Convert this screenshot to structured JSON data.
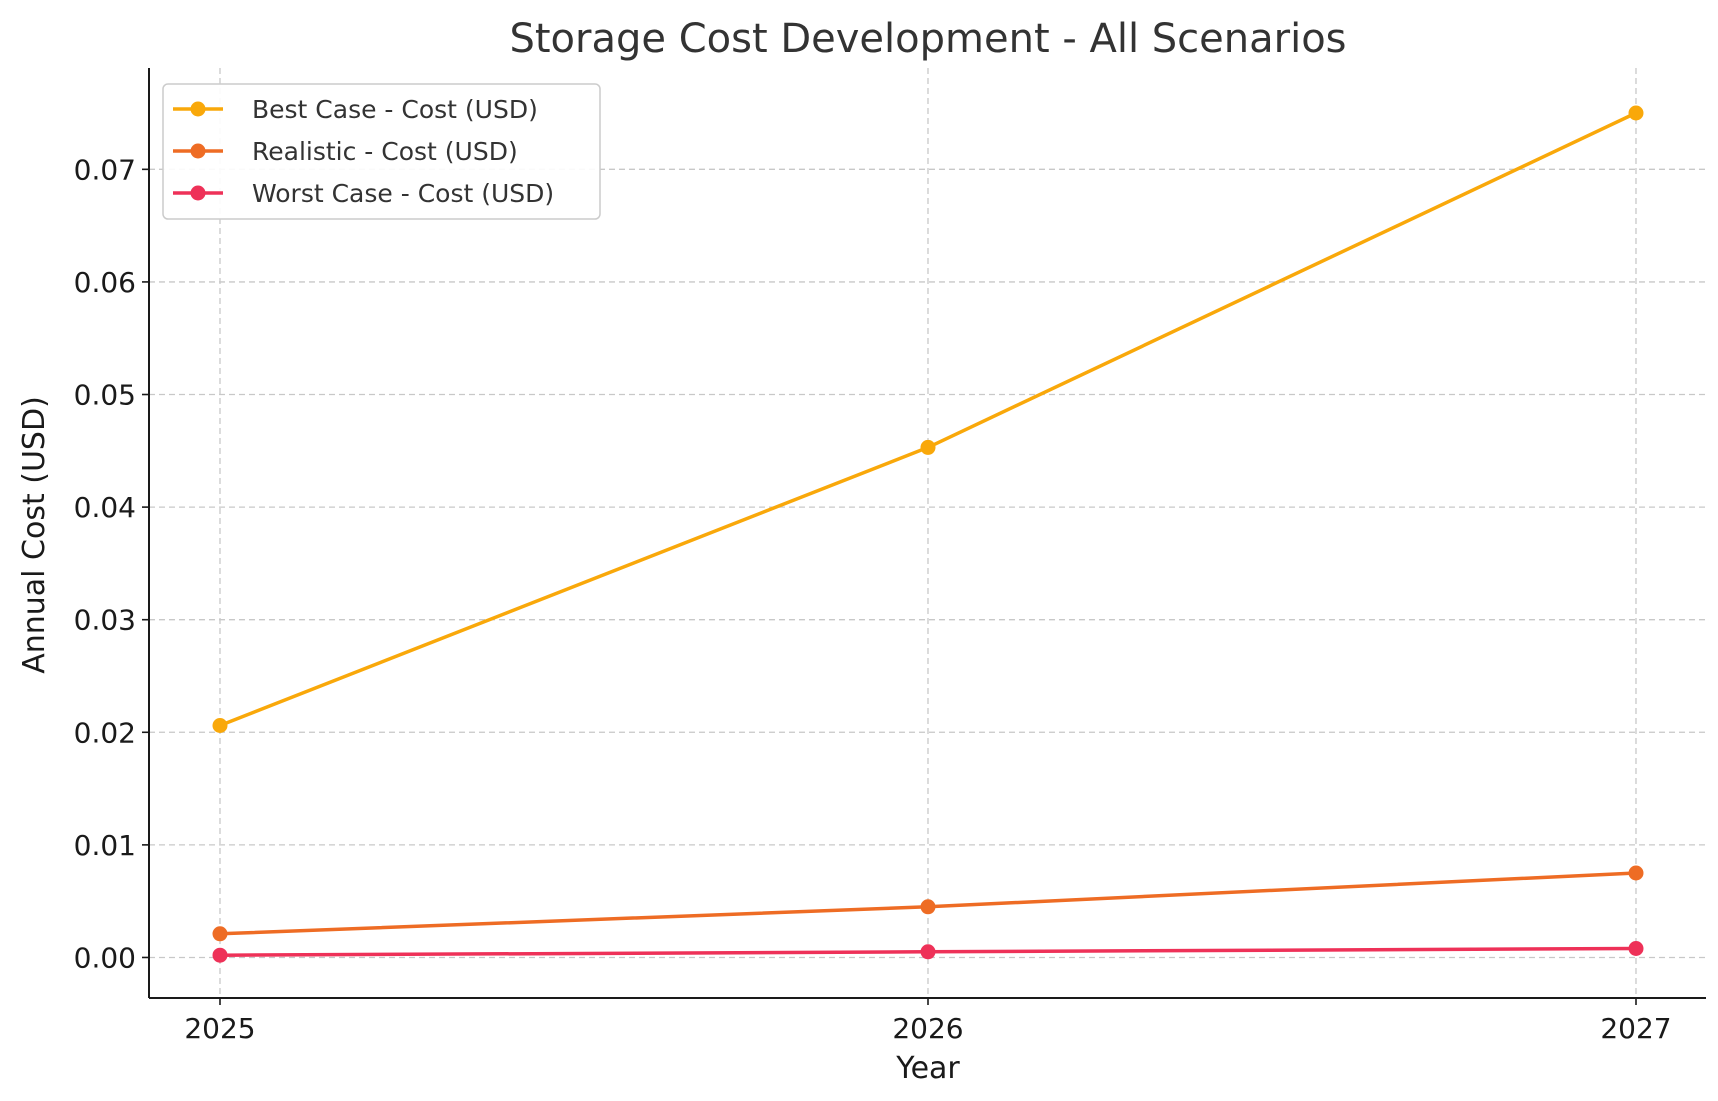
{
  "chart_data": {
    "type": "line",
    "title": "Storage Cost Development - All Scenarios",
    "xlabel": "Year",
    "ylabel": "Annual Cost (USD)",
    "x": [
      "2025",
      "2026",
      "2027"
    ],
    "ylim": [
      -0.0036,
      0.079
    ],
    "yticks": [
      "0.00",
      "0.01",
      "0.02",
      "0.03",
      "0.04",
      "0.05",
      "0.06",
      "0.07"
    ],
    "grid": true,
    "legend_position": "top-left",
    "series": [
      {
        "name": "Best Case - Cost (USD)",
        "color": "#F9A80A",
        "values": [
          0.0206,
          0.0453,
          0.075
        ]
      },
      {
        "name": "Realistic - Cost (USD)",
        "color": "#EE6C24",
        "values": [
          0.0021,
          0.0045,
          0.0075
        ]
      },
      {
        "name": "Worst Case - Cost (USD)",
        "color": "#EE3158",
        "values": [
          0.0002,
          0.0005,
          0.0008
        ]
      }
    ]
  }
}
